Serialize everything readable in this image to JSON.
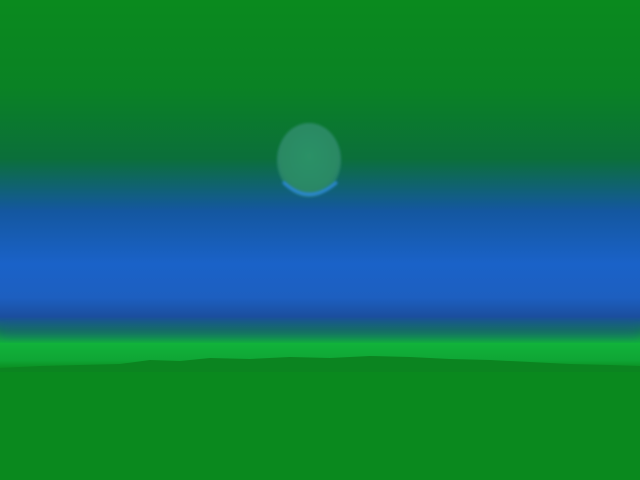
{
  "scene": {
    "colors": {
      "sky_top": "#0a8a1e",
      "sky_mid": "#0b6f3a",
      "sky_haze": "#1a62c8",
      "sky_haze_deep": "#1d4fae",
      "horizon_glow": "#11b33a",
      "land": "#0a8a1e",
      "land_ridge": "#0b7f26",
      "moon_fill": "#2e8d6a",
      "moon_rim": "#2a86d0"
    },
    "elements": [
      "sky",
      "moon",
      "horizon-glow",
      "land"
    ]
  }
}
